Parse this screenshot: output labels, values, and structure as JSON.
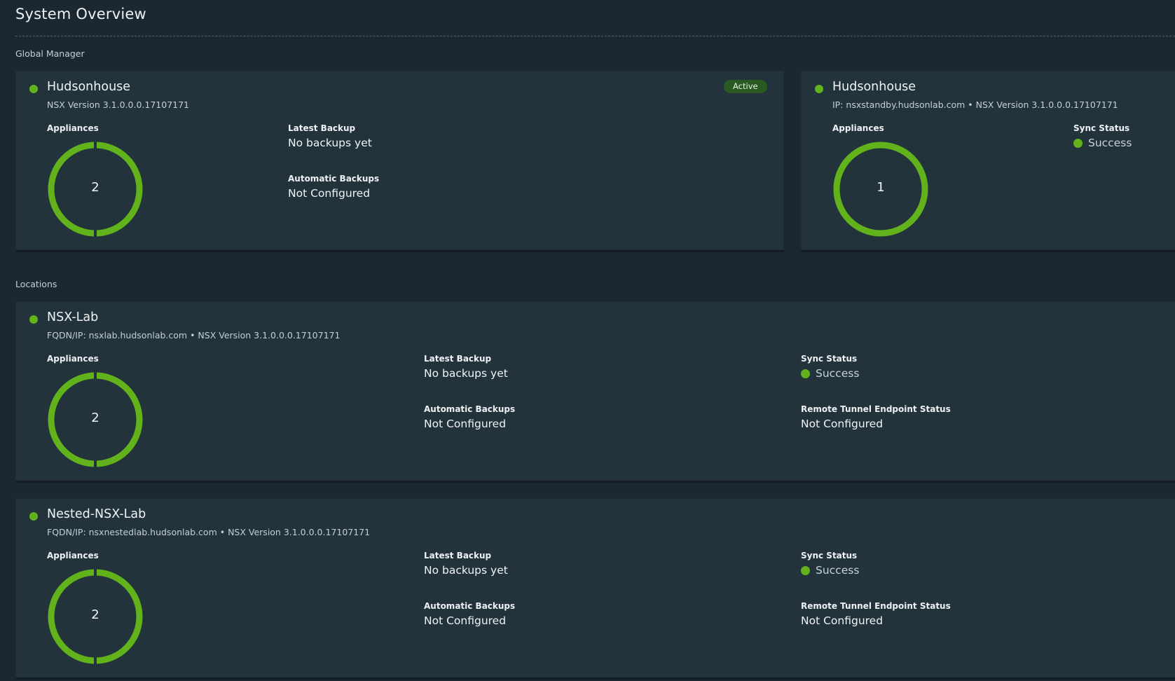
{
  "page": {
    "title": "System Overview"
  },
  "global_manager": {
    "section_label": "Global Manager",
    "active": {
      "name": "Hudsonhouse",
      "subtitle": "NSX Version 3.1.0.0.0.17107171",
      "badge": "Active",
      "appliances_label": "Appliances",
      "appliances_count": "2",
      "latest_backup_label": "Latest Backup",
      "latest_backup_value": "No backups yet",
      "automatic_backups_label": "Automatic Backups",
      "automatic_backups_value": "Not Configured"
    },
    "standby": {
      "name": "Hudsonhouse",
      "subtitle": "IP: nsxstandby.hudsonlab.com • NSX Version 3.1.0.0.0.17107171",
      "appliances_label": "Appliances",
      "appliances_count": "1",
      "sync_status_label": "Sync Status",
      "sync_status_value": "Success"
    }
  },
  "locations": {
    "section_label": "Locations",
    "items": [
      {
        "name": "NSX-Lab",
        "subtitle": "FQDN/IP: nsxlab.hudsonlab.com • NSX Version 3.1.0.0.0.17107171",
        "appliances_label": "Appliances",
        "appliances_count": "2",
        "latest_backup_label": "Latest Backup",
        "latest_backup_value": "No backups yet",
        "automatic_backups_label": "Automatic Backups",
        "automatic_backups_value": "Not Configured",
        "sync_status_label": "Sync Status",
        "sync_status_value": "Success",
        "rtep_label": "Remote Tunnel Endpoint Status",
        "rtep_value": "Not Configured"
      },
      {
        "name": "Nested-NSX-Lab",
        "subtitle": "FQDN/IP: nsxnestedlab.hudsonlab.com • NSX Version 3.1.0.0.0.17107171",
        "appliances_label": "Appliances",
        "appliances_count": "2",
        "latest_backup_label": "Latest Backup",
        "latest_backup_value": "No backups yet",
        "automatic_backups_label": "Automatic Backups",
        "automatic_backups_value": "Not Configured",
        "sync_status_label": "Sync Status",
        "sync_status_value": "Success",
        "rtep_label": "Remote Tunnel Endpoint Status",
        "rtep_value": "Not Configured"
      }
    ]
  },
  "colors": {
    "status_green": "#62b21c",
    "card_bg": "#22333c",
    "page_bg": "#1b2731",
    "badge_bg": "#2a5a22"
  },
  "icons": {
    "status": "status-dot-icon",
    "donut": "appliance-donut-chart"
  }
}
